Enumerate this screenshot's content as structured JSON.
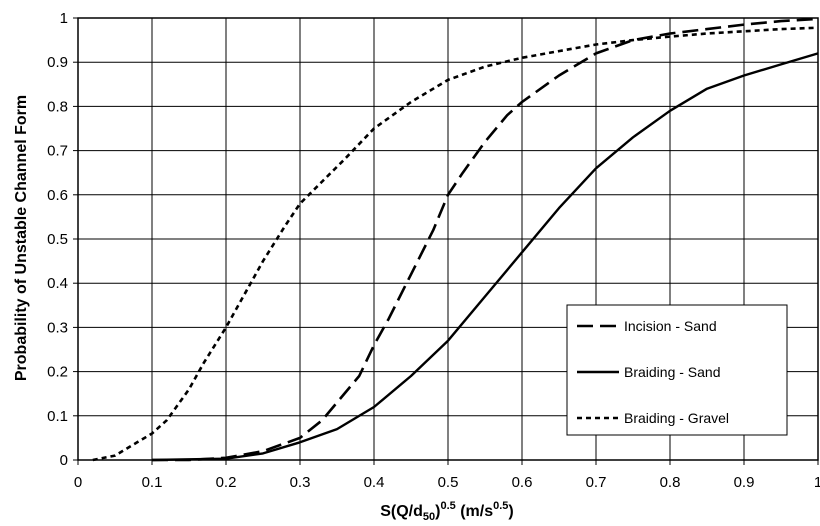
{
  "chart_data": {
    "type": "line",
    "title": "",
    "xlabel": {
      "base": "S(Q/d",
      "sub": "50",
      "paren": ")",
      "sup": "0.5",
      "unit": " (m/s",
      "unit_sup": "0.5",
      "unit_end": ")"
    },
    "ylabel": "Probability of Unstable Channel Form",
    "xlim": [
      0,
      1
    ],
    "ylim": [
      0,
      1
    ],
    "xticks": [
      "0",
      "0.1",
      "0.2",
      "0.3",
      "0.4",
      "0.5",
      "0.6",
      "0.7",
      "0.8",
      "0.9",
      "1"
    ],
    "yticks": [
      "0",
      "0.1",
      "0.2",
      "0.3",
      "0.4",
      "0.5",
      "0.6",
      "0.7",
      "0.8",
      "0.9",
      "1"
    ],
    "grid": true,
    "legend_position": "lower-right",
    "series": [
      {
        "name": "Incision - Sand",
        "style": "long-dash",
        "x": [
          0.1,
          0.15,
          0.2,
          0.25,
          0.3,
          0.33,
          0.35,
          0.38,
          0.4,
          0.42,
          0.45,
          0.48,
          0.5,
          0.52,
          0.55,
          0.58,
          0.6,
          0.65,
          0.7,
          0.75,
          0.8,
          0.85,
          0.9,
          0.95,
          1.0
        ],
        "y": [
          0.0,
          0.0,
          0.005,
          0.02,
          0.05,
          0.09,
          0.13,
          0.19,
          0.26,
          0.32,
          0.42,
          0.52,
          0.6,
          0.65,
          0.72,
          0.78,
          0.81,
          0.87,
          0.92,
          0.95,
          0.965,
          0.975,
          0.985,
          0.993,
          0.998
        ]
      },
      {
        "name": "Braiding - Sand",
        "style": "solid",
        "x": [
          0.1,
          0.2,
          0.25,
          0.3,
          0.35,
          0.4,
          0.45,
          0.5,
          0.55,
          0.6,
          0.65,
          0.7,
          0.75,
          0.8,
          0.85,
          0.9,
          0.95,
          1.0
        ],
        "y": [
          0.0,
          0.003,
          0.015,
          0.04,
          0.07,
          0.12,
          0.19,
          0.27,
          0.37,
          0.47,
          0.57,
          0.66,
          0.73,
          0.79,
          0.84,
          0.87,
          0.895,
          0.92
        ]
      },
      {
        "name": "Braiding - Gravel",
        "style": "short-dash",
        "x": [
          0.02,
          0.05,
          0.08,
          0.1,
          0.12,
          0.15,
          0.17,
          0.2,
          0.22,
          0.25,
          0.28,
          0.3,
          0.33,
          0.36,
          0.4,
          0.45,
          0.5,
          0.55,
          0.6,
          0.65,
          0.7,
          0.75,
          0.8,
          0.85,
          0.9,
          0.95,
          1.0
        ],
        "y": [
          0.0,
          0.01,
          0.04,
          0.06,
          0.09,
          0.16,
          0.22,
          0.3,
          0.36,
          0.45,
          0.53,
          0.58,
          0.63,
          0.68,
          0.75,
          0.81,
          0.86,
          0.89,
          0.91,
          0.925,
          0.94,
          0.95,
          0.958,
          0.965,
          0.97,
          0.975,
          0.978
        ]
      }
    ]
  }
}
